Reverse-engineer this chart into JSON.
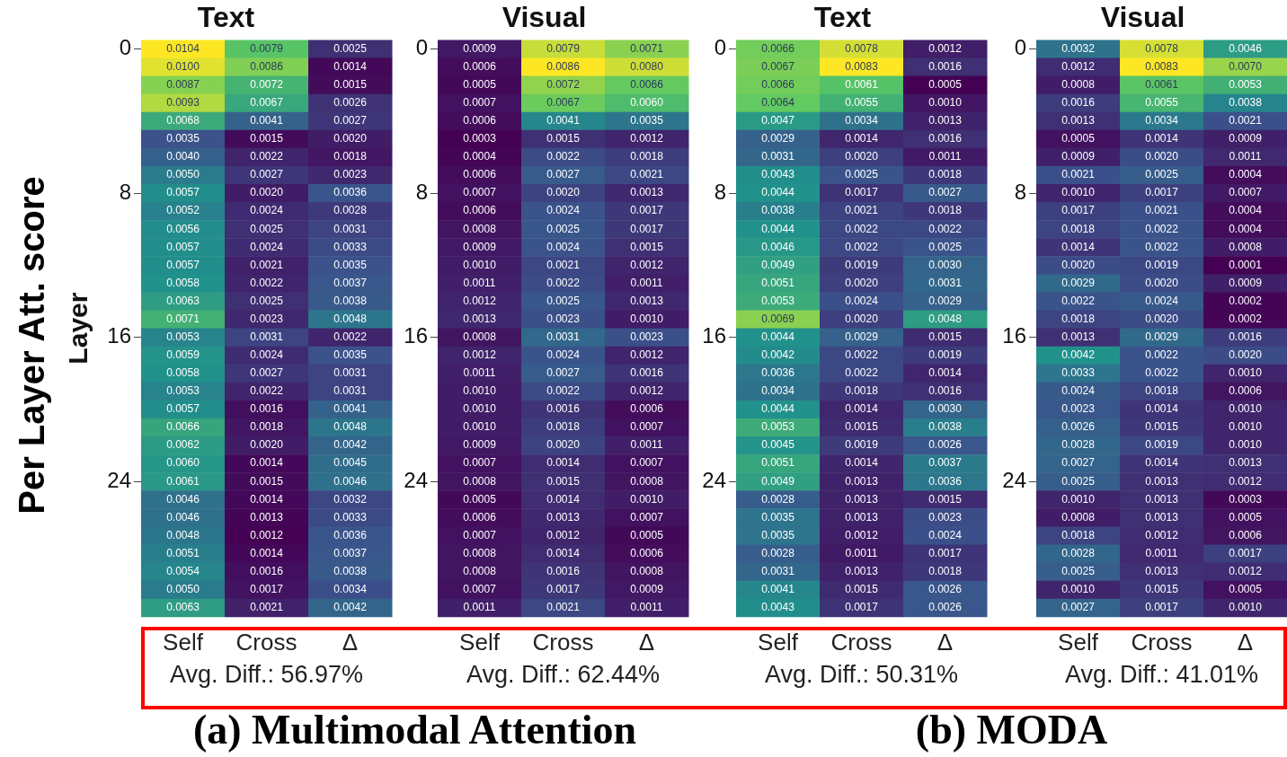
{
  "chart_data": [
    {
      "type": "heatmap",
      "title": "Text",
      "ylabel": "Layer",
      "categories": [
        "Self",
        "Cross",
        "Δ"
      ],
      "y_categories": [
        "0",
        null,
        null,
        null,
        null,
        null,
        null,
        null,
        "8",
        null,
        null,
        null,
        null,
        null,
        null,
        null,
        "16",
        null,
        null,
        null,
        null,
        null,
        null,
        null,
        "24",
        null,
        null,
        null,
        null,
        null,
        null,
        null
      ],
      "data_labels": true,
      "cells": [
        [
          0.0104,
          0.0079,
          0.0025
        ],
        [
          0.01,
          0.0086,
          0.0014
        ],
        [
          0.0087,
          0.0072,
          0.0015
        ],
        [
          0.0093,
          0.0067,
          0.0026
        ],
        [
          0.0068,
          0.0041,
          0.0027
        ],
        [
          0.0035,
          0.0015,
          0.002
        ],
        [
          0.004,
          0.0022,
          0.0018
        ],
        [
          0.005,
          0.0027,
          0.0023
        ],
        [
          0.0057,
          0.002,
          0.0036
        ],
        [
          0.0052,
          0.0024,
          0.0028
        ],
        [
          0.0056,
          0.0025,
          0.0031
        ],
        [
          0.0057,
          0.0024,
          0.0033
        ],
        [
          0.0057,
          0.0021,
          0.0035
        ],
        [
          0.0058,
          0.0022,
          0.0037
        ],
        [
          0.0063,
          0.0025,
          0.0038
        ],
        [
          0.0071,
          0.0023,
          0.0048
        ],
        [
          0.0053,
          0.0031,
          0.0022
        ],
        [
          0.0059,
          0.0024,
          0.0035
        ],
        [
          0.0058,
          0.0027,
          0.0031
        ],
        [
          0.0053,
          0.0022,
          0.0031
        ],
        [
          0.0057,
          0.0016,
          0.0041
        ],
        [
          0.0066,
          0.0018,
          0.0048
        ],
        [
          0.0062,
          0.002,
          0.0042
        ],
        [
          0.006,
          0.0014,
          0.0045
        ],
        [
          0.0061,
          0.0015,
          0.0046
        ],
        [
          0.0046,
          0.0014,
          0.0032
        ],
        [
          0.0046,
          0.0013,
          0.0033
        ],
        [
          0.0048,
          0.0012,
          0.0036
        ],
        [
          0.0051,
          0.0014,
          0.0037
        ],
        [
          0.0054,
          0.0016,
          0.0038
        ],
        [
          0.005,
          0.0017,
          0.0034
        ],
        [
          0.0063,
          0.0021,
          0.0042
        ]
      ],
      "cell_labels": [
        [
          "0.0104",
          "0.0079",
          "0.0025"
        ],
        [
          "0.0100",
          "0.0086",
          "0.0014"
        ],
        [
          "0.0087",
          "0.0072",
          "0.0015"
        ],
        [
          "0.0093",
          "0.0067",
          "0.0026"
        ],
        [
          "0.0068",
          "0.0041",
          "0.0027"
        ],
        [
          "0.0035",
          "0.0015",
          "0.0020"
        ],
        [
          "0.0040",
          "0.0022",
          "0.0018"
        ],
        [
          "0.0050",
          "0.0027",
          "0.0023"
        ],
        [
          "0.0057",
          "0.0020",
          "0.0036"
        ],
        [
          "0.0052",
          "0.0024",
          "0.0028"
        ],
        [
          "0.0056",
          "0.0025",
          "0.0031"
        ],
        [
          "0.0057",
          "0.0024",
          "0.0033"
        ],
        [
          "0.0057",
          "0.0021",
          "0.0035"
        ],
        [
          "0.0058",
          "0.0022",
          "0.0037"
        ],
        [
          "0.0063",
          "0.0025",
          "0.0038"
        ],
        [
          "0.0071",
          "0.0023",
          "0.0048"
        ],
        [
          "0.0053",
          "0.0031",
          "0.0022"
        ],
        [
          "0.0059",
          "0.0024",
          "0.0035"
        ],
        [
          "0.0058",
          "0.0027",
          "0.0031"
        ],
        [
          "0.0053",
          "0.0022",
          "0.0031"
        ],
        [
          "0.0057",
          "0.0016",
          "0.0041"
        ],
        [
          "0.0066",
          "0.0018",
          "0.0048"
        ],
        [
          "0.0062",
          "0.0020",
          "0.0042"
        ],
        [
          "0.0060",
          "0.0014",
          "0.0045"
        ],
        [
          "0.0061",
          "0.0015",
          "0.0046"
        ],
        [
          "0.0046",
          "0.0014",
          "0.0032"
        ],
        [
          "0.0046",
          "0.0013",
          "0.0033"
        ],
        [
          "0.0048",
          "0.0012",
          "0.0036"
        ],
        [
          "0.0051",
          "0.0014",
          "0.0037"
        ],
        [
          "0.0054",
          "0.0016",
          "0.0038"
        ],
        [
          "0.0050",
          "0.0017",
          "0.0034"
        ],
        [
          "0.0063",
          "0.0021",
          "0.0042"
        ]
      ],
      "annotations": [
        "Avg. Diff.: 56.97%",
        "Per Layer Att. score",
        "(a) Multimodal Attention"
      ]
    },
    {
      "type": "heatmap",
      "title": "Visual",
      "categories": [
        "Self",
        "Cross",
        "Δ"
      ],
      "y_categories": [
        "0",
        null,
        null,
        null,
        null,
        null,
        null,
        null,
        "8",
        null,
        null,
        null,
        null,
        null,
        null,
        null,
        "16",
        null,
        null,
        null,
        null,
        null,
        null,
        null,
        "24",
        null,
        null,
        null,
        null,
        null,
        null,
        null
      ],
      "data_labels": true,
      "cells": [
        [
          0.0009,
          0.0079,
          0.0071
        ],
        [
          0.0006,
          0.0086,
          0.008
        ],
        [
          0.0005,
          0.0072,
          0.0066
        ],
        [
          0.0007,
          0.0067,
          0.006
        ],
        [
          0.0006,
          0.0041,
          0.0035
        ],
        [
          0.0003,
          0.0015,
          0.0012
        ],
        [
          0.0004,
          0.0022,
          0.0018
        ],
        [
          0.0006,
          0.0027,
          0.0021
        ],
        [
          0.0007,
          0.002,
          0.0013
        ],
        [
          0.0006,
          0.0024,
          0.0017
        ],
        [
          0.0008,
          0.0025,
          0.0017
        ],
        [
          0.0009,
          0.0024,
          0.0015
        ],
        [
          0.001,
          0.0021,
          0.0012
        ],
        [
          0.0011,
          0.0022,
          0.0011
        ],
        [
          0.0012,
          0.0025,
          0.0013
        ],
        [
          0.0013,
          0.0023,
          0.001
        ],
        [
          0.0008,
          0.0031,
          0.0023
        ],
        [
          0.0012,
          0.0024,
          0.0012
        ],
        [
          0.0011,
          0.0027,
          0.0016
        ],
        [
          0.001,
          0.0022,
          0.0012
        ],
        [
          0.001,
          0.0016,
          0.0006
        ],
        [
          0.001,
          0.0018,
          0.0007
        ],
        [
          0.0009,
          0.002,
          0.0011
        ],
        [
          0.0007,
          0.0014,
          0.0007
        ],
        [
          0.0008,
          0.0015,
          0.0008
        ],
        [
          0.0005,
          0.0014,
          0.001
        ],
        [
          0.0006,
          0.0013,
          0.0007
        ],
        [
          0.0007,
          0.0012,
          0.0005
        ],
        [
          0.0008,
          0.0014,
          0.0006
        ],
        [
          0.0008,
          0.0016,
          0.0008
        ],
        [
          0.0007,
          0.0017,
          0.0009
        ],
        [
          0.0011,
          0.0021,
          0.0011
        ]
      ],
      "cell_labels": [
        [
          "0.0009",
          "0.0079",
          "0.0071"
        ],
        [
          "0.0006",
          "0.0086",
          "0.0080"
        ],
        [
          "0.0005",
          "0.0072",
          "0.0066"
        ],
        [
          "0.0007",
          "0.0067",
          "0.0060"
        ],
        [
          "0.0006",
          "0.0041",
          "0.0035"
        ],
        [
          "0.0003",
          "0.0015",
          "0.0012"
        ],
        [
          "0.0004",
          "0.0022",
          "0.0018"
        ],
        [
          "0.0006",
          "0.0027",
          "0.0021"
        ],
        [
          "0.0007",
          "0.0020",
          "0.0013"
        ],
        [
          "0.0006",
          "0.0024",
          "0.0017"
        ],
        [
          "0.0008",
          "0.0025",
          "0.0017"
        ],
        [
          "0.0009",
          "0.0024",
          "0.0015"
        ],
        [
          "0.0010",
          "0.0021",
          "0.0012"
        ],
        [
          "0.0011",
          "0.0022",
          "0.0011"
        ],
        [
          "0.0012",
          "0.0025",
          "0.0013"
        ],
        [
          "0.0013",
          "0.0023",
          "0.0010"
        ],
        [
          "0.0008",
          "0.0031",
          "0.0023"
        ],
        [
          "0.0012",
          "0.0024",
          "0.0012"
        ],
        [
          "0.0011",
          "0.0027",
          "0.0016"
        ],
        [
          "0.0010",
          "0.0022",
          "0.0012"
        ],
        [
          "0.0010",
          "0.0016",
          "0.0006"
        ],
        [
          "0.0010",
          "0.0018",
          "0.0007"
        ],
        [
          "0.0009",
          "0.0020",
          "0.0011"
        ],
        [
          "0.0007",
          "0.0014",
          "0.0007"
        ],
        [
          "0.0008",
          "0.0015",
          "0.0008"
        ],
        [
          "0.0005",
          "0.0014",
          "0.0010"
        ],
        [
          "0.0006",
          "0.0013",
          "0.0007"
        ],
        [
          "0.0007",
          "0.0012",
          "0.0005"
        ],
        [
          "0.0008",
          "0.0014",
          "0.0006"
        ],
        [
          "0.0008",
          "0.0016",
          "0.0008"
        ],
        [
          "0.0007",
          "0.0017",
          "0.0009"
        ],
        [
          "0.0011",
          "0.0021",
          "0.0011"
        ]
      ],
      "annotations": [
        "Avg. Diff.: 62.44%"
      ]
    },
    {
      "type": "heatmap",
      "title": "Text",
      "categories": [
        "Self",
        "Cross",
        "Δ"
      ],
      "y_categories": [
        "0",
        null,
        null,
        null,
        null,
        null,
        null,
        null,
        "8",
        null,
        null,
        null,
        null,
        null,
        null,
        null,
        "16",
        null,
        null,
        null,
        null,
        null,
        null,
        null,
        "24",
        null,
        null,
        null,
        null,
        null,
        null,
        null
      ],
      "data_labels": true,
      "cells": [
        [
          0.0066,
          0.0078,
          0.0012
        ],
        [
          0.0067,
          0.0083,
          0.0016
        ],
        [
          0.0066,
          0.0061,
          0.0005
        ],
        [
          0.0064,
          0.0055,
          0.001
        ],
        [
          0.0047,
          0.0034,
          0.0013
        ],
        [
          0.0029,
          0.0014,
          0.0016
        ],
        [
          0.0031,
          0.002,
          0.0011
        ],
        [
          0.0043,
          0.0025,
          0.0018
        ],
        [
          0.0044,
          0.0017,
          0.0027
        ],
        [
          0.0038,
          0.0021,
          0.0018
        ],
        [
          0.0044,
          0.0022,
          0.0022
        ],
        [
          0.0046,
          0.0022,
          0.0025
        ],
        [
          0.0049,
          0.0019,
          0.003
        ],
        [
          0.0051,
          0.002,
          0.0031
        ],
        [
          0.0053,
          0.0024,
          0.0029
        ],
        [
          0.0069,
          0.002,
          0.0048
        ],
        [
          0.0044,
          0.0029,
          0.0015
        ],
        [
          0.0042,
          0.0022,
          0.0019
        ],
        [
          0.0036,
          0.0022,
          0.0014
        ],
        [
          0.0034,
          0.0018,
          0.0016
        ],
        [
          0.0044,
          0.0014,
          0.003
        ],
        [
          0.0053,
          0.0015,
          0.0038
        ],
        [
          0.0045,
          0.0019,
          0.0026
        ],
        [
          0.0051,
          0.0014,
          0.0037
        ],
        [
          0.0049,
          0.0013,
          0.0036
        ],
        [
          0.0028,
          0.0013,
          0.0015
        ],
        [
          0.0035,
          0.0013,
          0.0023
        ],
        [
          0.0035,
          0.0012,
          0.0024
        ],
        [
          0.0028,
          0.0011,
          0.0017
        ],
        [
          0.0031,
          0.0013,
          0.0018
        ],
        [
          0.0041,
          0.0015,
          0.0026
        ],
        [
          0.0043,
          0.0017,
          0.0026
        ]
      ],
      "cell_labels": [
        [
          "0.0066",
          "0.0078",
          "0.0012"
        ],
        [
          "0.0067",
          "0.0083",
          "0.0016"
        ],
        [
          "0.0066",
          "0.0061",
          "0.0005"
        ],
        [
          "0.0064",
          "0.0055",
          "0.0010"
        ],
        [
          "0.0047",
          "0.0034",
          "0.0013"
        ],
        [
          "0.0029",
          "0.0014",
          "0.0016"
        ],
        [
          "0.0031",
          "0.0020",
          "0.0011"
        ],
        [
          "0.0043",
          "0.0025",
          "0.0018"
        ],
        [
          "0.0044",
          "0.0017",
          "0.0027"
        ],
        [
          "0.0038",
          "0.0021",
          "0.0018"
        ],
        [
          "0.0044",
          "0.0022",
          "0.0022"
        ],
        [
          "0.0046",
          "0.0022",
          "0.0025"
        ],
        [
          "0.0049",
          "0.0019",
          "0.0030"
        ],
        [
          "0.0051",
          "0.0020",
          "0.0031"
        ],
        [
          "0.0053",
          "0.0024",
          "0.0029"
        ],
        [
          "0.0069",
          "0.0020",
          "0.0048"
        ],
        [
          "0.0044",
          "0.0029",
          "0.0015"
        ],
        [
          "0.0042",
          "0.0022",
          "0.0019"
        ],
        [
          "0.0036",
          "0.0022",
          "0.0014"
        ],
        [
          "0.0034",
          "0.0018",
          "0.0016"
        ],
        [
          "0.0044",
          "0.0014",
          "0.0030"
        ],
        [
          "0.0053",
          "0.0015",
          "0.0038"
        ],
        [
          "0.0045",
          "0.0019",
          "0.0026"
        ],
        [
          "0.0051",
          "0.0014",
          "0.0037"
        ],
        [
          "0.0049",
          "0.0013",
          "0.0036"
        ],
        [
          "0.0028",
          "0.0013",
          "0.0015"
        ],
        [
          "0.0035",
          "0.0013",
          "0.0023"
        ],
        [
          "0.0035",
          "0.0012",
          "0.0024"
        ],
        [
          "0.0028",
          "0.0011",
          "0.0017"
        ],
        [
          "0.0031",
          "0.0013",
          "0.0018"
        ],
        [
          "0.0041",
          "0.0015",
          "0.0026"
        ],
        [
          "0.0043",
          "0.0017",
          "0.0026"
        ]
      ],
      "annotations": [
        "Avg. Diff.: 50.31%",
        "(b) MODA"
      ]
    },
    {
      "type": "heatmap",
      "title": "Visual",
      "categories": [
        "Self",
        "Cross",
        "Δ"
      ],
      "y_categories": [
        "0",
        null,
        null,
        null,
        null,
        null,
        null,
        null,
        "8",
        null,
        null,
        null,
        null,
        null,
        null,
        null,
        "16",
        null,
        null,
        null,
        null,
        null,
        null,
        null,
        "24",
        null,
        null,
        null,
        null,
        null,
        null,
        null
      ],
      "data_labels": true,
      "cells": [
        [
          0.0032,
          0.0078,
          0.0046
        ],
        [
          0.0012,
          0.0083,
          0.007
        ],
        [
          0.0008,
          0.0061,
          0.0053
        ],
        [
          0.0016,
          0.0055,
          0.0038
        ],
        [
          0.0013,
          0.0034,
          0.0021
        ],
        [
          0.0005,
          0.0014,
          0.0009
        ],
        [
          0.0009,
          0.002,
          0.0011
        ],
        [
          0.0021,
          0.0025,
          0.0004
        ],
        [
          0.001,
          0.0017,
          0.0007
        ],
        [
          0.0017,
          0.0021,
          0.0004
        ],
        [
          0.0018,
          0.0022,
          0.0004
        ],
        [
          0.0014,
          0.0022,
          0.0008
        ],
        [
          0.002,
          0.0019,
          0.0001
        ],
        [
          0.0029,
          0.002,
          0.0009
        ],
        [
          0.0022,
          0.0024,
          0.0002
        ],
        [
          0.0018,
          0.002,
          0.0002
        ],
        [
          0.0013,
          0.0029,
          0.0016
        ],
        [
          0.0042,
          0.0022,
          0.002
        ],
        [
          0.0033,
          0.0022,
          0.001
        ],
        [
          0.0024,
          0.0018,
          0.0006
        ],
        [
          0.0023,
          0.0014,
          0.001
        ],
        [
          0.0026,
          0.0015,
          0.001
        ],
        [
          0.0028,
          0.0019,
          0.001
        ],
        [
          0.0027,
          0.0014,
          0.0013
        ],
        [
          0.0025,
          0.0013,
          0.0012
        ],
        [
          0.001,
          0.0013,
          0.0003
        ],
        [
          0.0008,
          0.0013,
          0.0005
        ],
        [
          0.0018,
          0.0012,
          0.0006
        ],
        [
          0.0028,
          0.0011,
          0.0017
        ],
        [
          0.0025,
          0.0013,
          0.0012
        ],
        [
          0.001,
          0.0015,
          0.0005
        ],
        [
          0.0027,
          0.0017,
          0.001
        ]
      ],
      "cell_labels": [
        [
          "0.0032",
          "0.0078",
          "0.0046"
        ],
        [
          "0.0012",
          "0.0083",
          "0.0070"
        ],
        [
          "0.0008",
          "0.0061",
          "0.0053"
        ],
        [
          "0.0016",
          "0.0055",
          "0.0038"
        ],
        [
          "0.0013",
          "0.0034",
          "0.0021"
        ],
        [
          "0.0005",
          "0.0014",
          "0.0009"
        ],
        [
          "0.0009",
          "0.0020",
          "0.0011"
        ],
        [
          "0.0021",
          "0.0025",
          "0.0004"
        ],
        [
          "0.0010",
          "0.0017",
          "0.0007"
        ],
        [
          "0.0017",
          "0.0021",
          "0.0004"
        ],
        [
          "0.0018",
          "0.0022",
          "0.0004"
        ],
        [
          "0.0014",
          "0.0022",
          "0.0008"
        ],
        [
          "0.0020",
          "0.0019",
          "0.0001"
        ],
        [
          "0.0029",
          "0.0020",
          "0.0009"
        ],
        [
          "0.0022",
          "0.0024",
          "0.0002"
        ],
        [
          "0.0018",
          "0.0020",
          "0.0002"
        ],
        [
          "0.0013",
          "0.0029",
          "0.0016"
        ],
        [
          "0.0042",
          "0.0022",
          "0.0020"
        ],
        [
          "0.0033",
          "0.0022",
          "0.0010"
        ],
        [
          "0.0024",
          "0.0018",
          "0.0006"
        ],
        [
          "0.0023",
          "0.0014",
          "0.0010"
        ],
        [
          "0.0026",
          "0.0015",
          "0.0010"
        ],
        [
          "0.0028",
          "0.0019",
          "0.0010"
        ],
        [
          "0.0027",
          "0.0014",
          "0.0013"
        ],
        [
          "0.0025",
          "0.0013",
          "0.0012"
        ],
        [
          "0.0010",
          "0.0013",
          "0.0003"
        ],
        [
          "0.0008",
          "0.0013",
          "0.0005"
        ],
        [
          "0.0018",
          "0.0012",
          "0.0006"
        ],
        [
          "0.0028",
          "0.0011",
          "0.0017"
        ],
        [
          "0.0025",
          "0.0013",
          "0.0012"
        ],
        [
          "0.0010",
          "0.0015",
          "0.0005"
        ],
        [
          "0.0027",
          "0.0017",
          "0.0010"
        ]
      ],
      "annotations": [
        "Avg. Diff.: 41.01%"
      ]
    }
  ]
}
